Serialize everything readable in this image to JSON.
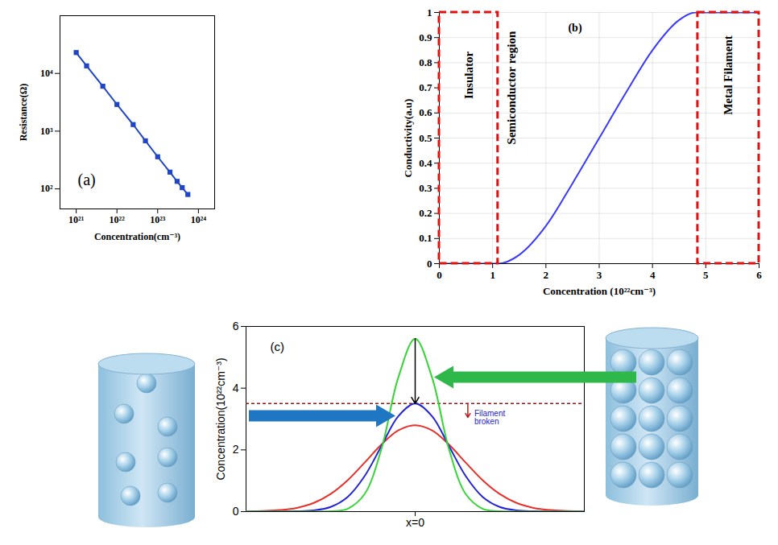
{
  "chart_data": [
    {
      "type": "line",
      "marker": "square",
      "log": true,
      "panel": "(a)",
      "xlabel": "Concentration(cm⁻³)",
      "ylabel": "Resistance(Ω)",
      "x": [
        1e+21,
        1.8e+21,
        4.5e+21,
        1e+22,
        2.5e+22,
        5e+22,
        1e+23,
        2e+23,
        3e+23,
        4e+23,
        5.5e+23
      ],
      "series": [
        {
          "color": "#1f45c4",
          "values": [
            23000,
            13500,
            6000,
            2900,
            1300,
            680,
            360,
            195,
            135,
            105,
            80
          ]
        }
      ],
      "xlim": [
        4e+20,
        2.5e+24
      ],
      "ylim": [
        45,
        100000
      ],
      "xticks": [
        {
          "value": 1e+21,
          "label": "10²¹"
        },
        {
          "value": 1e+22,
          "label": "10²²"
        },
        {
          "value": 1e+23,
          "label": "10²³"
        },
        {
          "value": 1e+24,
          "label": "10²⁴"
        }
      ],
      "yticks": [
        {
          "value": 100,
          "label": "10²"
        },
        {
          "value": 1000,
          "label": "10³"
        },
        {
          "value": 10000,
          "label": "10⁴"
        }
      ]
    },
    {
      "type": "line",
      "panel": "(b)",
      "grid": true,
      "xlabel": "Concentration (10²²cm⁻³)",
      "ylabel": "Conductivity(a.u)",
      "x": [
        0,
        0.5,
        1,
        1.1,
        1.5,
        2,
        2.5,
        3,
        3.5,
        4,
        4.5,
        4.8,
        5,
        5.5,
        6
      ],
      "series": [
        {
          "color": "#3a3aff",
          "values": [
            0,
            0,
            0,
            0,
            0.035,
            0.15,
            0.32,
            0.5,
            0.68,
            0.85,
            0.97,
            1,
            1,
            1,
            1
          ]
        }
      ],
      "xlim": [
        0,
        6
      ],
      "ylim": [
        0,
        1
      ],
      "xticks": [
        0,
        1,
        2,
        3,
        4,
        5,
        6
      ],
      "yticks": [
        0,
        0.1,
        0.2,
        0.3,
        0.4,
        0.5,
        0.6,
        0.7,
        0.8,
        0.9,
        1
      ],
      "regions": [
        {
          "x0": 0,
          "x1": 1.1
        },
        {
          "x0": 4.85,
          "x1": 6
        }
      ],
      "annotations": [
        {
          "text": "Insulator",
          "x": 0.55,
          "y": 0.75
        },
        {
          "text": "Semiconductor region",
          "x": 1.35,
          "y": 0.7
        },
        {
          "text": "Metal Filament",
          "x": 5.42,
          "y": 0.75
        }
      ]
    },
    {
      "type": "line",
      "panel": "(c)",
      "ylabel": "Concentration(10²²cm⁻³)",
      "x": [
        -5,
        -4.5,
        -4,
        -3.5,
        -3,
        -2.5,
        -2,
        -1.5,
        -1,
        -0.5,
        0,
        0.5,
        1,
        1.5,
        2,
        2.5,
        3,
        3.5,
        4,
        4.5,
        5
      ],
      "series": [
        {
          "color": "#e8302a",
          "values": [
            0,
            0.02,
            0.05,
            0.12,
            0.28,
            0.57,
            1.01,
            1.58,
            2.17,
            2.63,
            2.8,
            2.63,
            2.17,
            1.58,
            1.01,
            0.57,
            0.28,
            0.12,
            0.05,
            0.02,
            0
          ]
        },
        {
          "color": "#2323d8",
          "values": [
            0,
            0,
            0,
            0.01,
            0.04,
            0.15,
            0.47,
            1.14,
            2.12,
            3.09,
            3.5,
            3.09,
            2.12,
            1.14,
            0.47,
            0.15,
            0.04,
            0.01,
            0,
            0,
            0
          ]
        },
        {
          "color": "#33d633",
          "values": [
            0,
            0,
            0,
            0,
            0,
            0.01,
            0.09,
            0.56,
            2.02,
            4.34,
            5.6,
            4.34,
            2.02,
            0.56,
            0.09,
            0.01,
            0,
            0,
            0,
            0,
            0
          ]
        }
      ],
      "xlim": [
        -5,
        5
      ],
      "ylim": [
        0,
        6
      ],
      "xticks": [
        {
          "value": 0,
          "label": "x=0"
        }
      ],
      "yticks": [
        0,
        2,
        4,
        6
      ],
      "threshold": 3.5,
      "annotations": [
        {
          "text": "Filament broken",
          "x": 1.7,
          "y": 3.05
        }
      ]
    }
  ]
}
